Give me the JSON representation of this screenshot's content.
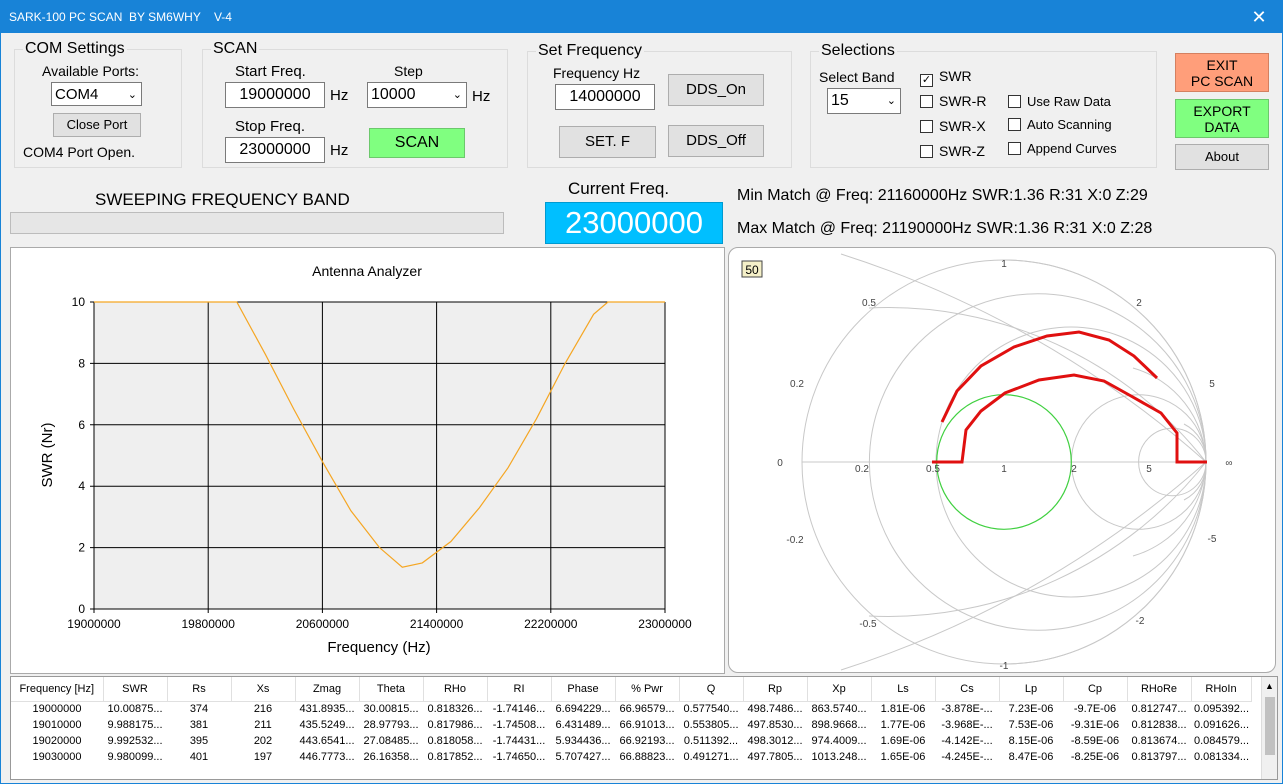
{
  "window": {
    "title": "SARK-100 PC SCAN  BY SM6WHY    V-4",
    "close": "✕"
  },
  "com": {
    "legend": "COM Settings",
    "ports_label": "Available Ports:",
    "port": "COM4",
    "close_btn": "Close Port",
    "status": "COM4 Port Open."
  },
  "scan": {
    "legend": "SCAN",
    "start_label": "Start Freq.",
    "start": "19000000",
    "start_unit": "Hz",
    "step_label": "Step",
    "step": "10000",
    "step_unit": "Hz",
    "stop_label": "Stop Freq.",
    "stop": "23000000",
    "stop_unit": "Hz",
    "scan_btn": "SCAN"
  },
  "setfreq": {
    "legend": "Set Frequency",
    "freq_label": "Frequency Hz",
    "freq": "14000000",
    "dds_on": "DDS_On",
    "set_btn": "SET. F",
    "dds_off": "DDS_Off"
  },
  "sel": {
    "legend": "Selections",
    "band_label": "Select Band",
    "band": "15",
    "swr": "SWR",
    "swr_r": "SWR-R",
    "swr_x": "SWR-X",
    "swr_z": "SWR-Z",
    "raw": "Use Raw Data",
    "auto": "Auto Scanning",
    "append": "Append Curves"
  },
  "side": {
    "exit": "EXIT",
    "exit2": "PC SCAN",
    "export": "EXPORT",
    "export2": "DATA",
    "about": "About"
  },
  "status": {
    "sweep": "SWEEPING FREQUENCY BAND",
    "cur_label": "Current  Freq.",
    "cur": "23000000",
    "min": "Min Match @ Freq: 21160000Hz   SWR:1.36  R:31  X:0  Z:29",
    "max": "Max Match @ Freq: 21190000Hz   SWR:1.36  R:31  X:0  Z:28"
  },
  "colors": {
    "accent": "#1883d7",
    "green_btn": "#80ff80",
    "exit_btn": "#ff9e7a",
    "freq_bg": "#00bfff",
    "curve": "#f5a623",
    "smith": "#e01010"
  },
  "chart_data": {
    "type": "line",
    "title": "Antenna Analyzer",
    "xlabel": "Frequency (Hz)",
    "ylabel": "SWR (Nr)",
    "xlim": [
      19000000,
      23000000
    ],
    "ylim": [
      0,
      10
    ],
    "xticks": [
      "19000000",
      "19800000",
      "20600000",
      "21400000",
      "22200000",
      "23000000"
    ],
    "yticks": [
      "0",
      "2",
      "4",
      "6",
      "8",
      "10"
    ],
    "grid": true,
    "x": [
      19000000,
      19600000,
      20000000,
      20200000,
      20400000,
      20600000,
      20800000,
      21000000,
      21160000,
      21300000,
      21500000,
      21700000,
      21900000,
      22100000,
      22300000,
      22500000,
      22600000,
      23000000
    ],
    "y": [
      10,
      10,
      10,
      8.3,
      6.5,
      4.8,
      3.2,
      2.0,
      1.36,
      1.5,
      2.2,
      3.3,
      4.6,
      6.2,
      8.0,
      9.6,
      10,
      10
    ]
  },
  "smith": {
    "badge": "50",
    "labels": [
      "1",
      "0.5",
      "2",
      "0.2",
      "5",
      "0",
      "0.2",
      "0.5",
      "1",
      "2",
      "5",
      "∞",
      "-0.2",
      "-5",
      "-0.5",
      "-2",
      "-1"
    ]
  },
  "table": {
    "headers": [
      "Frequency  [Hz]",
      "SWR",
      "Rs",
      "Xs",
      "Zmag",
      "Theta",
      "RHo",
      "RI",
      "Phase",
      "% Pwr",
      "Q",
      "Rp",
      "Xp",
      "Ls",
      "Cs",
      "Lp",
      "Cp",
      "RHoRe",
      "RHoIn"
    ],
    "rows": [
      [
        "19000000",
        "10.00875...",
        "374",
        "216",
        "431.8935...",
        "30.00815...",
        "0.818326...",
        "-1.74146...",
        "6.694229...",
        "66.96579...",
        "0.577540...",
        "498.7486...",
        "863.5740...",
        "1.81E-06",
        "-3.878E-...",
        "7.23E-06",
        "-9.7E-06",
        "0.812747...",
        "0.095392..."
      ],
      [
        "19010000",
        "9.988175...",
        "381",
        "211",
        "435.5249...",
        "28.97793...",
        "0.817986...",
        "-1.74508...",
        "6.431489...",
        "66.91013...",
        "0.553805...",
        "497.8530...",
        "898.9668...",
        "1.77E-06",
        "-3.968E-...",
        "7.53E-06",
        "-9.31E-06",
        "0.812838...",
        "0.091626..."
      ],
      [
        "19020000",
        "9.992532...",
        "395",
        "202",
        "443.6541...",
        "27.08485...",
        "0.818058...",
        "-1.74431...",
        "5.934436...",
        "66.92193...",
        "0.511392...",
        "498.3012...",
        "974.4009...",
        "1.69E-06",
        "-4.142E-...",
        "8.15E-06",
        "-8.59E-06",
        "0.813674...",
        "0.084579..."
      ],
      [
        "19030000",
        "9.980099...",
        "401",
        "197",
        "446.7773...",
        "26.16358...",
        "0.817852...",
        "-1.74650...",
        "5.707427...",
        "66.88823...",
        "0.491271...",
        "497.7805...",
        "1013.248...",
        "1.65E-06",
        "-4.245E-...",
        "8.47E-06",
        "-8.25E-06",
        "0.813797...",
        "0.081334..."
      ]
    ]
  }
}
